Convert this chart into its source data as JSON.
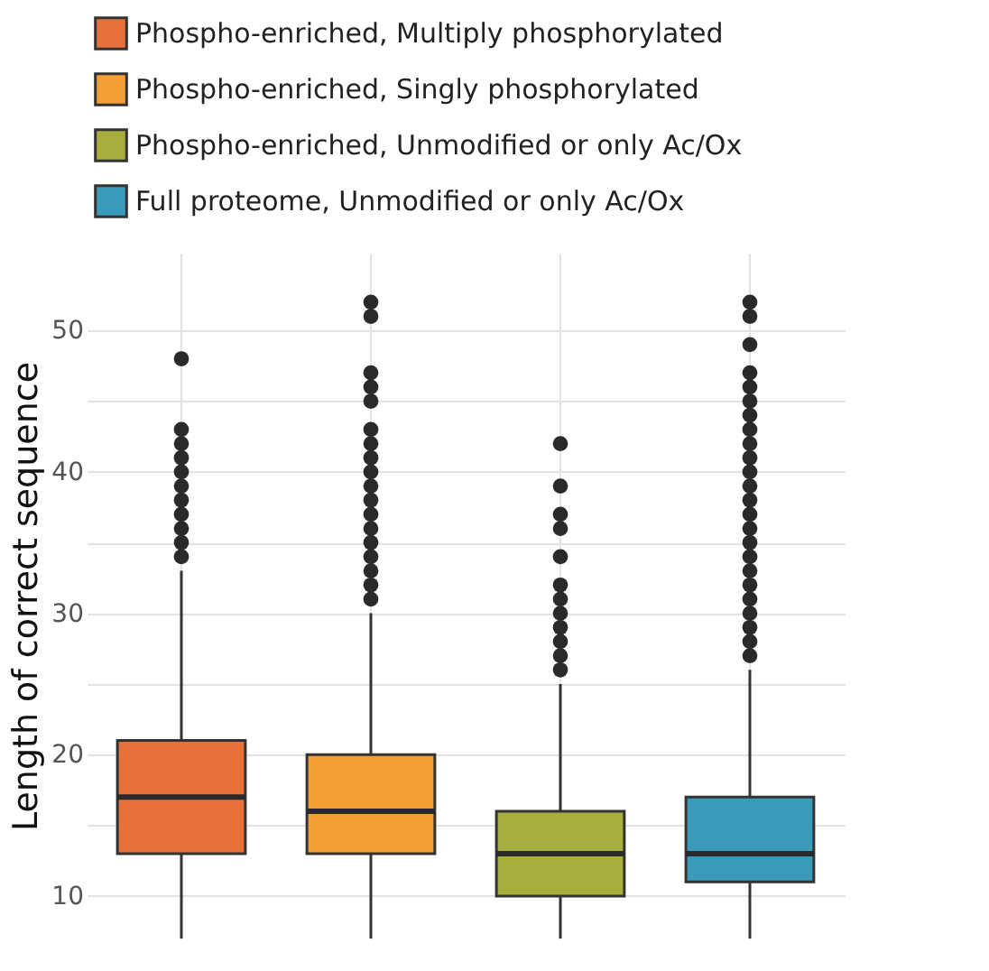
{
  "chart_data": {
    "type": "box",
    "ylabel": "Length of correct sequence",
    "categories": [
      null,
      null,
      null,
      null
    ],
    "series": [
      {
        "name": "Phospho-enriched, Multiply phosphorylated",
        "color": "#e8703a",
        "boxes": [
          {
            "low": 7,
            "q1": 13,
            "median": 17,
            "q3": 21,
            "high": 33,
            "outliers": [
              34,
              35,
              36,
              37,
              38,
              39,
              40,
              41,
              42,
              43,
              48
            ]
          },
          null,
          null,
          null
        ]
      },
      {
        "name": "Phospho-enriched, Singly phosphorylated",
        "color": "#f2a033",
        "boxes": [
          null,
          {
            "low": 7,
            "q1": 13,
            "median": 16,
            "q3": 20,
            "high": 30,
            "outliers": [
              31,
              32,
              33,
              34,
              35,
              36,
              37,
              38,
              39,
              40,
              41,
              42,
              43,
              45,
              46,
              47,
              51,
              52
            ]
          },
          null,
          null
        ]
      },
      {
        "name": "Phospho-enriched, Unmodified or only Ac/Ox",
        "color": "#a8ae3c",
        "boxes": [
          null,
          null,
          {
            "low": 7,
            "q1": 10,
            "median": 13,
            "q3": 16,
            "high": 25,
            "outliers": [
              26,
              27,
              28,
              29,
              30,
              31,
              32,
              34,
              36,
              37,
              39,
              42
            ]
          },
          null
        ]
      },
      {
        "name": "Full proteome, Unmodified or only Ac/Ox",
        "color": "#3a9ab9",
        "boxes": [
          null,
          null,
          null,
          {
            "low": 7,
            "q1": 11,
            "median": 13,
            "q3": 17,
            "high": 26,
            "outliers": [
              27,
              28,
              29,
              30,
              31,
              32,
              33,
              34,
              35,
              36,
              37,
              38,
              39,
              40,
              41,
              42,
              43,
              44,
              45,
              46,
              47,
              49,
              51,
              52
            ]
          }
        ]
      }
    ],
    "ylim": [
      7,
      55.5
    ],
    "yticks": [
      10,
      {
        "value": 15,
        "label": null
      },
      20,
      {
        "value": 25,
        "label": null
      },
      30,
      {
        "value": 35,
        "label": null
      },
      40,
      {
        "value": 45,
        "label": null
      },
      50
    ],
    "grid": true,
    "legend": "top",
    "tick_labels": "y"
  }
}
